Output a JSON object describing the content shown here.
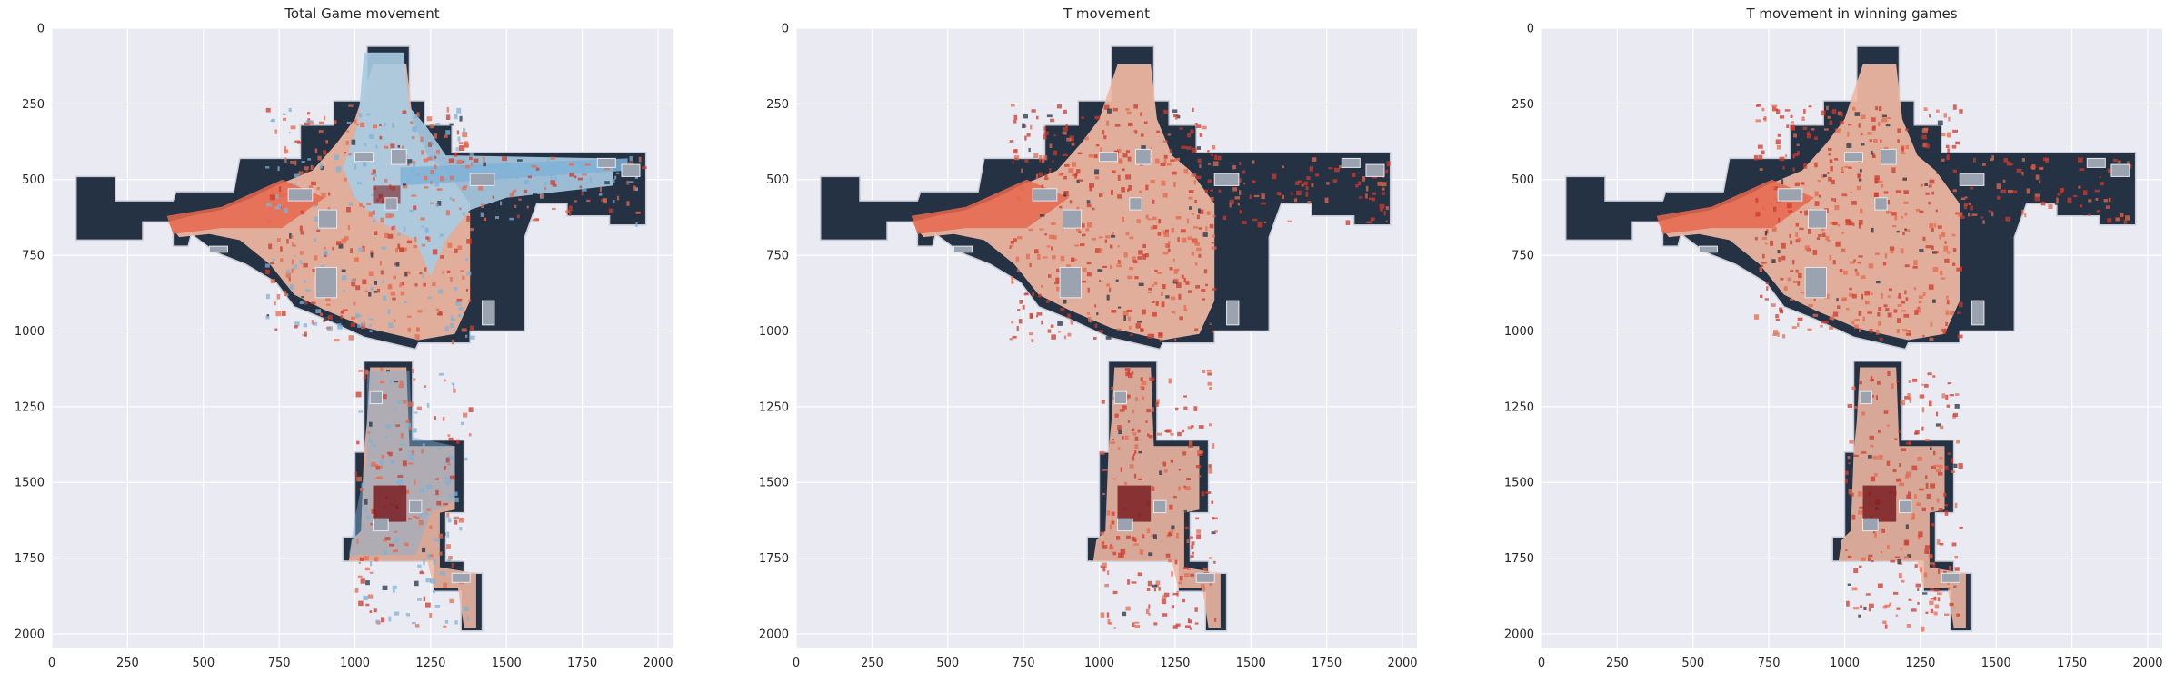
{
  "chart_data": [
    {
      "type": "heatmap",
      "title": "Total Game movement",
      "xlabel": "",
      "ylabel": "",
      "xlim": [
        0,
        2048
      ],
      "ylim": [
        2048,
        0
      ],
      "xticks": [
        0,
        250,
        500,
        750,
        1000,
        1250,
        1500,
        1750,
        2000
      ],
      "yticks": [
        0,
        250,
        500,
        750,
        1000,
        1250,
        1500,
        1750,
        2000
      ],
      "grid": true,
      "colormap": "red + blue density over dark map",
      "background": "radar map image"
    },
    {
      "type": "heatmap",
      "title": "T movement",
      "xlabel": "",
      "ylabel": "",
      "xlim": [
        0,
        2048
      ],
      "ylim": [
        2048,
        0
      ],
      "xticks": [
        0,
        250,
        500,
        750,
        1000,
        1250,
        1500,
        1750,
        2000
      ],
      "yticks": [
        0,
        250,
        500,
        750,
        1000,
        1250,
        1500,
        1750,
        2000
      ],
      "grid": true,
      "colormap": "red density over dark map",
      "background": "radar map image"
    },
    {
      "type": "heatmap",
      "title": "T movement in winning games",
      "xlabel": "",
      "ylabel": "",
      "xlim": [
        0,
        2048
      ],
      "ylim": [
        2048,
        0
      ],
      "xticks": [
        0,
        250,
        500,
        750,
        1000,
        1250,
        1500,
        1750,
        2000
      ],
      "yticks": [
        0,
        250,
        500,
        750,
        1000,
        1250,
        1500,
        1750,
        2000
      ],
      "grid": true,
      "colormap": "red density over dark map",
      "background": "radar map image"
    }
  ],
  "colors": {
    "axes_bg": "#eaeaf2",
    "grid": "#ffffff",
    "map_dark": "#253244",
    "heat_light": "#f0b8a3",
    "heat_mid": "#e6694e",
    "heat_strong": "#cf3a2b",
    "heat_dark": "#7a1d22",
    "ct_light": "#a9cbe3",
    "ct_mid": "#7fb1d6",
    "outline": "#c8ccd6",
    "obstacle": "#9aa3af"
  }
}
